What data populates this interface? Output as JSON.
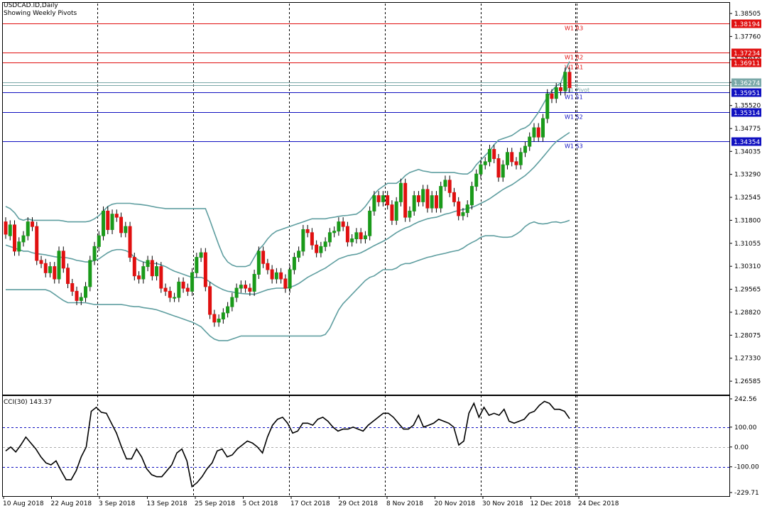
{
  "header": {
    "symbol": "USDCAD.ID,Daily",
    "subtitle": "Showing Weekly Pivots"
  },
  "indicator": {
    "label": "CCI(30) 143.37"
  },
  "chart_data": [
    {
      "type": "candlestick",
      "series_name": "USDCAD.ID,Daily",
      "yaxis_ticks": [
        "1.38505",
        "1.37760",
        "1.37010",
        "1.36270",
        "1.35520",
        "1.34775",
        "1.34035",
        "1.33290",
        "1.32545",
        "1.31800",
        "1.31055",
        "1.30310",
        "1.29565",
        "1.28820",
        "1.28075",
        "1.27330",
        "1.26585"
      ],
      "ylim": [
        1.2615,
        1.3885
      ],
      "xaxis_labels": [
        "10 Aug 2018",
        "22 Aug 2018",
        "3 Sep 2018",
        "13 Sep 2018",
        "25 Sep 2018",
        "5 Oct 2018",
        "17 Oct 2018",
        "29 Oct 2018",
        "8 Nov 2018",
        "20 Nov 2018",
        "30 Nov 2018",
        "12 Dec 2018",
        "24 Dec 2018"
      ],
      "current_price": {
        "value": 1.36274,
        "label": "1.36274",
        "color": "#7aa8a8"
      },
      "pivots": [
        {
          "name": "W1 R3",
          "value": 1.38194,
          "label": "1.38194",
          "color": "#e01010"
        },
        {
          "name": "W1 R2",
          "value": 1.37234,
          "label": "1.37234",
          "color": "#e01010"
        },
        {
          "name": "W1 R1",
          "value": 1.36911,
          "label": "1.36911",
          "color": "#e01010"
        },
        {
          "name": "W1 Pivot",
          "value": 1.3617,
          "label": "",
          "color": "#7aa8a8"
        },
        {
          "name": "W1 S1",
          "value": 1.35951,
          "label": "1.35951",
          "color": "#1010c0"
        },
        {
          "name": "W1 S2",
          "value": 1.35314,
          "label": "1.35314",
          "color": "#1010c0"
        },
        {
          "name": "W1 S3",
          "value": 1.34354,
          "label": "1.34354",
          "color": "#1010c0"
        }
      ],
      "close": [
        1.3135,
        1.3165,
        1.308,
        1.311,
        1.313,
        1.3175,
        1.316,
        1.305,
        1.304,
        1.301,
        1.303,
        1.299,
        1.308,
        1.3025,
        1.2975,
        1.295,
        1.292,
        1.293,
        1.2965,
        1.305,
        1.3095,
        1.313,
        1.321,
        1.315,
        1.32,
        1.319,
        1.314,
        1.316,
        1.306,
        1.3,
        1.299,
        1.303,
        1.305,
        1.3,
        1.303,
        1.296,
        1.295,
        1.293,
        1.293,
        1.298,
        1.296,
        1.295,
        1.301,
        1.306,
        1.3075,
        1.2965,
        1.2875,
        1.285,
        1.286,
        1.288,
        1.29,
        1.293,
        1.296,
        1.297,
        1.296,
        1.295,
        1.3005,
        1.308,
        1.304,
        1.302,
        1.299,
        1.301,
        1.299,
        1.296,
        1.302,
        1.306,
        1.308,
        1.315,
        1.314,
        1.31,
        1.3075,
        1.3095,
        1.311,
        1.314,
        1.3145,
        1.3175,
        1.316,
        1.311,
        1.312,
        1.314,
        1.312,
        1.313,
        1.321,
        1.326,
        1.324,
        1.326,
        1.323,
        1.318,
        1.324,
        1.33,
        1.319,
        1.321,
        1.326,
        1.324,
        1.328,
        1.322,
        1.326,
        1.322,
        1.329,
        1.331,
        1.327,
        1.324,
        1.3195,
        1.3205,
        1.323,
        1.329,
        1.333,
        1.336,
        1.337,
        1.341,
        1.338,
        1.332,
        1.336,
        1.34,
        1.337,
        1.336,
        1.34,
        1.342,
        1.345,
        1.348,
        1.345,
        1.351,
        1.359,
        1.3575,
        1.361,
        1.36,
        1.366,
        1.361
      ],
      "open": [
        1.3175,
        1.313,
        1.3165,
        1.308,
        1.311,
        1.313,
        1.3175,
        1.316,
        1.305,
        1.304,
        1.301,
        1.303,
        1.299,
        1.308,
        1.3025,
        1.2975,
        1.295,
        1.292,
        1.293,
        1.2965,
        1.305,
        1.3095,
        1.313,
        1.321,
        1.315,
        1.32,
        1.319,
        1.314,
        1.316,
        1.306,
        1.3,
        1.299,
        1.303,
        1.305,
        1.3,
        1.303,
        1.296,
        1.295,
        1.293,
        1.293,
        1.298,
        1.296,
        1.295,
        1.301,
        1.306,
        1.3075,
        1.2965,
        1.2875,
        1.285,
        1.286,
        1.288,
        1.29,
        1.293,
        1.296,
        1.297,
        1.296,
        1.295,
        1.3005,
        1.308,
        1.304,
        1.302,
        1.299,
        1.301,
        1.299,
        1.296,
        1.302,
        1.306,
        1.308,
        1.315,
        1.314,
        1.31,
        1.3075,
        1.3095,
        1.311,
        1.314,
        1.3145,
        1.3175,
        1.316,
        1.311,
        1.312,
        1.314,
        1.312,
        1.313,
        1.321,
        1.326,
        1.324,
        1.326,
        1.323,
        1.318,
        1.324,
        1.33,
        1.319,
        1.321,
        1.326,
        1.324,
        1.328,
        1.322,
        1.326,
        1.322,
        1.329,
        1.331,
        1.327,
        1.324,
        1.3195,
        1.3205,
        1.323,
        1.329,
        1.333,
        1.336,
        1.337,
        1.341,
        1.338,
        1.332,
        1.336,
        1.34,
        1.337,
        1.336,
        1.34,
        1.342,
        1.345,
        1.348,
        1.345,
        1.351,
        1.359,
        1.3575,
        1.361,
        1.36,
        1.366
      ],
      "bollinger": {
        "upper": [
          1.3225,
          1.3218,
          1.3205,
          1.3185,
          1.318,
          1.3185,
          1.318,
          1.318,
          1.318,
          1.318,
          1.318,
          1.318,
          1.318,
          1.3178,
          1.3175,
          1.3175,
          1.3175,
          1.3175,
          1.3175,
          1.3178,
          1.3185,
          1.3195,
          1.321,
          1.3225,
          1.3232,
          1.3235,
          1.3235,
          1.3235,
          1.3235,
          1.3233,
          1.3232,
          1.323,
          1.3228,
          1.3225,
          1.3222,
          1.322,
          1.3218,
          1.3218,
          1.3218,
          1.3218,
          1.3218,
          1.3218,
          1.3218,
          1.3218,
          1.3218,
          1.3218,
          1.318,
          1.314,
          1.31,
          1.3065,
          1.3045,
          1.3035,
          1.303,
          1.303,
          1.303,
          1.3035,
          1.306,
          1.3085,
          1.31,
          1.312,
          1.3135,
          1.3145,
          1.315,
          1.3155,
          1.316,
          1.3165,
          1.317,
          1.3175,
          1.318,
          1.3185,
          1.3185,
          1.3185,
          1.3185,
          1.3188,
          1.319,
          1.3193,
          1.3195,
          1.3196,
          1.3198,
          1.32,
          1.321,
          1.3225,
          1.3245,
          1.3265,
          1.328,
          1.329,
          1.33,
          1.33,
          1.33,
          1.331,
          1.3325,
          1.3335,
          1.334,
          1.3345,
          1.334,
          1.3338,
          1.3335,
          1.3335,
          1.3335,
          1.3335,
          1.3335,
          1.3335,
          1.3332,
          1.333,
          1.333,
          1.334,
          1.336,
          1.3375,
          1.339,
          1.3405,
          1.3425,
          1.344,
          1.3445,
          1.345,
          1.3455,
          1.3465,
          1.3475,
          1.348,
          1.349,
          1.351,
          1.353,
          1.3555,
          1.358,
          1.36,
          1.3615,
          1.3625,
          1.3665,
          1.3695
        ],
        "middle": [
          1.31,
          1.3095,
          1.309,
          1.3085,
          1.308,
          1.308,
          1.3075,
          1.3072,
          1.307,
          1.3068,
          1.3065,
          1.3062,
          1.306,
          1.306,
          1.3058,
          1.3055,
          1.305,
          1.3048,
          1.3045,
          1.3045,
          1.305,
          1.3055,
          1.3065,
          1.3075,
          1.3082,
          1.3085,
          1.3085,
          1.3082,
          1.3075,
          1.306,
          1.305,
          1.3045,
          1.3042,
          1.304,
          1.304,
          1.3035,
          1.303,
          1.3022,
          1.3015,
          1.301,
          1.3005,
          1.3,
          1.2995,
          1.2995,
          1.2995,
          1.299,
          1.298,
          1.297,
          1.2962,
          1.2955,
          1.295,
          1.2948,
          1.2945,
          1.2943,
          1.2942,
          1.2941,
          1.294,
          1.2945,
          1.295,
          1.2955,
          1.2958,
          1.296,
          1.296,
          1.296,
          1.2963,
          1.2968,
          1.2975,
          1.2985,
          1.2995,
          1.3003,
          1.301,
          1.3018,
          1.3025,
          1.3035,
          1.3045,
          1.3055,
          1.306,
          1.3065,
          1.3068,
          1.307,
          1.3075,
          1.3082,
          1.309,
          1.3098,
          1.3105,
          1.3112,
          1.312,
          1.313,
          1.314,
          1.3148,
          1.3155,
          1.316,
          1.3168,
          1.3175,
          1.318,
          1.3185,
          1.3188,
          1.319,
          1.3195,
          1.32,
          1.3203,
          1.3208,
          1.3212,
          1.3215,
          1.3218,
          1.3222,
          1.3228,
          1.3235,
          1.3242,
          1.325,
          1.326,
          1.327,
          1.328,
          1.3288,
          1.3295,
          1.3305,
          1.3315,
          1.3325,
          1.3338,
          1.3352,
          1.3368,
          1.3385,
          1.3402,
          1.342,
          1.3435,
          1.3445,
          1.3455,
          1.3465
        ],
        "lower": [
          1.2955,
          1.2955,
          1.2955,
          1.2955,
          1.2955,
          1.2955,
          1.2955,
          1.2955,
          1.2955,
          1.2955,
          1.295,
          1.294,
          1.293,
          1.292,
          1.2913,
          1.2913,
          1.2913,
          1.2913,
          1.2913,
          1.291,
          1.2907,
          1.2907,
          1.2907,
          1.2907,
          1.2907,
          1.2907,
          1.2907,
          1.2905,
          1.2902,
          1.29,
          1.29,
          1.2897,
          1.2895,
          1.2893,
          1.289,
          1.2885,
          1.288,
          1.2875,
          1.287,
          1.2865,
          1.286,
          1.2855,
          1.285,
          1.2843,
          1.2835,
          1.282,
          1.2805,
          1.2795,
          1.279,
          1.279,
          1.279,
          1.2795,
          1.28,
          1.2805,
          1.2805,
          1.2805,
          1.2805,
          1.2805,
          1.2805,
          1.2805,
          1.2805,
          1.2805,
          1.2805,
          1.2805,
          1.2805,
          1.2805,
          1.2805,
          1.2805,
          1.2805,
          1.2805,
          1.2805,
          1.2805,
          1.281,
          1.283,
          1.286,
          1.289,
          1.291,
          1.2925,
          1.294,
          1.2955,
          1.297,
          1.2985,
          1.2995,
          1.3,
          1.301,
          1.302,
          1.302,
          1.302,
          1.3025,
          1.3035,
          1.304,
          1.304,
          1.3045,
          1.305,
          1.3055,
          1.306,
          1.3063,
          1.3067,
          1.307,
          1.3073,
          1.3077,
          1.308,
          1.3083,
          1.309,
          1.31,
          1.3108,
          1.3115,
          1.3125,
          1.313,
          1.313,
          1.313,
          1.3127,
          1.3125,
          1.3125,
          1.3127,
          1.3135,
          1.3145,
          1.316,
          1.317,
          1.3175,
          1.317,
          1.3168,
          1.317,
          1.3174,
          1.3175,
          1.3172,
          1.3175,
          1.318
        ]
      }
    },
    {
      "type": "line",
      "series_name": "CCI(30)",
      "yaxis_ticks": [
        "242.56",
        "100.00",
        "0.00",
        "-100.00",
        "-229.71"
      ],
      "ylim": [
        -229.71,
        242.56
      ],
      "levels": [
        100,
        0,
        -100
      ],
      "values": [
        -20,
        0,
        -25,
        10,
        50,
        20,
        -10,
        -50,
        -80,
        -90,
        -70,
        -120,
        -165,
        -165,
        -120,
        -50,
        0,
        180,
        200,
        175,
        170,
        120,
        70,
        0,
        -60,
        -60,
        -10,
        -50,
        -110,
        -140,
        -150,
        -150,
        -120,
        -90,
        -30,
        -10,
        -70,
        -200,
        -180,
        -150,
        -110,
        -80,
        -20,
        -10,
        -50,
        -40,
        -10,
        10,
        30,
        20,
        0,
        -30,
        50,
        110,
        140,
        150,
        120,
        70,
        80,
        120,
        120,
        110,
        140,
        150,
        130,
        100,
        80,
        90,
        90,
        100,
        90,
        80,
        110,
        130,
        150,
        170,
        170,
        150,
        120,
        90,
        90,
        110,
        160,
        100,
        110,
        120,
        140,
        130,
        120,
        100,
        10,
        30,
        170,
        220,
        150,
        200,
        160,
        170,
        160,
        190,
        130,
        120,
        130,
        140,
        170,
        180,
        210,
        230,
        220,
        190,
        190,
        180,
        143
      ]
    }
  ]
}
